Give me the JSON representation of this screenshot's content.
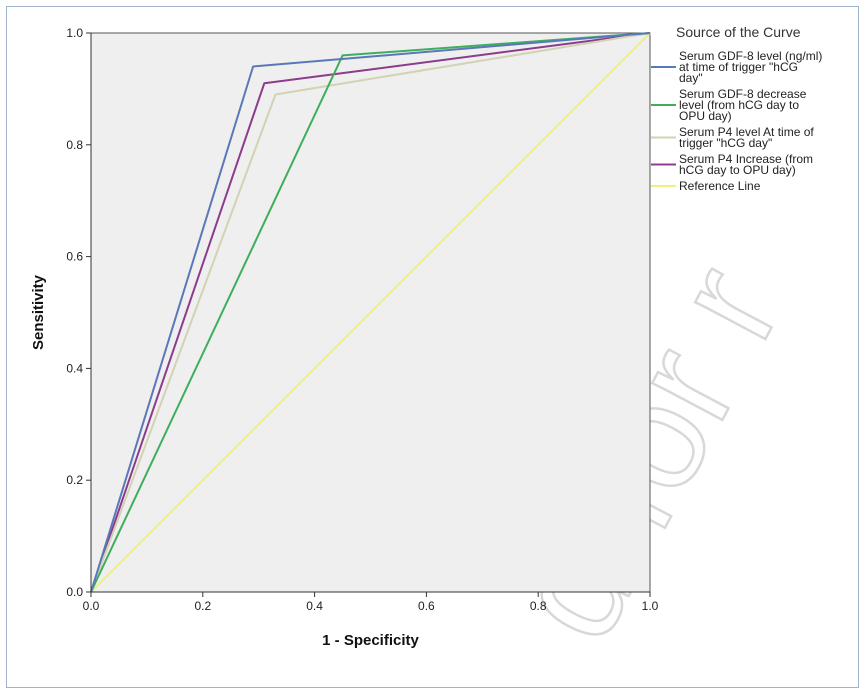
{
  "chart_data": {
    "type": "line",
    "xlabel": "1 - Specificity",
    "ylabel": "Sensitivity",
    "xlim": [
      0,
      1
    ],
    "ylim": [
      0,
      1
    ],
    "xticks": [
      "0.0",
      "0.2",
      "0.4",
      "0.6",
      "0.8",
      "1.0"
    ],
    "yticks": [
      "0.0",
      "0.2",
      "0.4",
      "0.6",
      "0.8",
      "1.0"
    ],
    "grid": false,
    "legend_title": "Source of the Curve",
    "legend_position": "right",
    "series": [
      {
        "name": "Serum GDF-8 level (ng/ml) at time of trigger \"hCG day\"",
        "color": "#5a78b8",
        "x": [
          0,
          0.29,
          1
        ],
        "y": [
          0,
          0.94,
          1
        ]
      },
      {
        "name": "Serum GDF-8 decrease level (from hCG day to OPU day)",
        "color": "#3fae5c",
        "x": [
          0,
          0.45,
          1
        ],
        "y": [
          0,
          0.96,
          1
        ]
      },
      {
        "name": "Serum P4 level At time of trigger \"hCG day\"",
        "color": "#d2d2b4",
        "x": [
          0,
          0.33,
          1
        ],
        "y": [
          0,
          0.89,
          1
        ]
      },
      {
        "name": "Serum P4 Increase (from hCG day to OPU day)",
        "color": "#8c3c8c",
        "x": [
          0,
          0.31,
          1
        ],
        "y": [
          0,
          0.91,
          1
        ]
      },
      {
        "name": "Reference Line",
        "color": "#f0f078",
        "x": [
          0,
          1
        ],
        "y": [
          0,
          1
        ]
      }
    ]
  },
  "legend_lines": [
    [
      "Serum GDF-8 level (ng/ml)",
      "at time of trigger \"hCG",
      "day\""
    ],
    [
      "Serum GDF-8 decrease",
      "level (from hCG day to",
      "OPU day)"
    ],
    [
      "Serum P4 level At time of",
      "trigger \"hCG day\""
    ],
    [
      "Serum P4 Increase (from",
      "hCG day to OPU day)"
    ],
    [
      "Reference Line"
    ]
  ],
  "watermark_text": "d for r"
}
